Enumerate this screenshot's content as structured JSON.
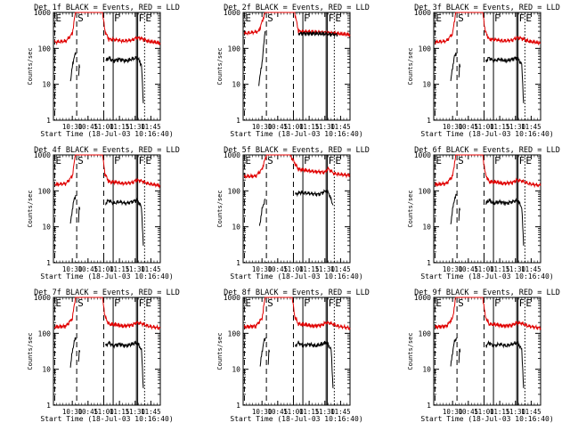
{
  "chart_data": {
    "type": "line",
    "panels": [
      {
        "title": "Det 1f BLACK = Events, RED = LLD",
        "variant": "a"
      },
      {
        "title": "Det 2f BLACK = Events, RED = LLD",
        "variant": "b"
      },
      {
        "title": "Det 3f BLACK = Events, RED = LLD",
        "variant": "a"
      },
      {
        "title": "Det 4f BLACK = Events, RED = LLD",
        "variant": "a"
      },
      {
        "title": "Det 5f BLACK = Events, RED = LLD",
        "variant": "c"
      },
      {
        "title": "Det 6f BLACK = Events, RED = LLD",
        "variant": "a"
      },
      {
        "title": "Det 7f BLACK = Events, RED = LLD",
        "variant": "a"
      },
      {
        "title": "Det 8f BLACK = Events, RED = LLD",
        "variant": "a"
      },
      {
        "title": "Det 9f BLACK = Events, RED = LLD",
        "variant": "a"
      }
    ],
    "xlabel": "Start Time (18-Jul-03 10:16:40)",
    "ylabel": "Counts/sec",
    "xlim": [
      10.2,
      11.9
    ],
    "x_ticks": [
      10.5,
      10.75,
      11.0,
      11.25,
      11.5,
      11.75
    ],
    "x_tick_labels": [
      "10:30",
      "10:45",
      "11:00",
      "11:15",
      "11:30",
      "11:45"
    ],
    "yscale": "log",
    "ylim": [
      1,
      1000
    ],
    "y_ticks": [
      1,
      10,
      100,
      1000
    ],
    "y_tick_labels": [
      "1",
      "10",
      "100",
      "1000"
    ],
    "markers": [
      {
        "label": "E",
        "x": 10.22,
        "style": "dashed"
      },
      {
        "label": "S",
        "x": 10.57,
        "style": "dashed"
      },
      {
        "label": "",
        "x": 11.0,
        "style": "dashed"
      },
      {
        "label": "F",
        "x": 11.15,
        "style": "solid"
      },
      {
        "label": "",
        "x": 11.52,
        "style": "solid"
      },
      {
        "label": "F",
        "x": 11.54,
        "style": "solid"
      },
      {
        "label": "E",
        "x": 11.65,
        "style": "dotted"
      }
    ],
    "series_styles": [
      {
        "name": "Events",
        "color": "#000000"
      },
      {
        "name": "LLD",
        "color": "#e00000"
      }
    ],
    "profiles": {
      "a": {
        "lld": [
          [
            10.22,
            150
          ],
          [
            10.4,
            160
          ],
          [
            10.5,
            260
          ],
          [
            10.55,
            1000
          ],
          [
            10.57,
            1000
          ],
          [
            10.9,
            1000
          ],
          [
            10.98,
            1000
          ],
          [
            11.02,
            300
          ],
          [
            11.08,
            180
          ],
          [
            11.2,
            175
          ],
          [
            11.3,
            160
          ],
          [
            11.45,
            170
          ],
          [
            11.52,
            200
          ],
          [
            11.6,
            190
          ],
          [
            11.7,
            160
          ],
          [
            11.9,
            140
          ]
        ],
        "events_segments": [
          [
            [
              10.47,
              12
            ],
            [
              10.5,
              30
            ],
            [
              10.53,
              60
            ],
            [
              10.56,
              75
            ]
          ],
          [
            [
              10.6,
              15
            ],
            [
              10.61,
              35
            ],
            [
              10.62,
              30
            ]
          ],
          [
            [
              11.03,
              45
            ],
            [
              11.08,
              55
            ],
            [
              11.15,
              45
            ],
            [
              11.25,
              50
            ],
            [
              11.35,
              45
            ],
            [
              11.45,
              50
            ],
            [
              11.52,
              55
            ],
            [
              11.55,
              50
            ],
            [
              11.6,
              35
            ],
            [
              11.63,
              3
            ]
          ]
        ]
      },
      "b": {
        "lld": [
          [
            10.22,
            260
          ],
          [
            10.35,
            280
          ],
          [
            10.45,
            300
          ],
          [
            10.55,
            1000
          ],
          [
            10.6,
            1000
          ],
          [
            10.9,
            1000
          ],
          [
            11.02,
            1000
          ],
          [
            11.08,
            300
          ],
          [
            11.3,
            290
          ],
          [
            11.5,
            280
          ],
          [
            11.7,
            260
          ],
          [
            11.9,
            240
          ]
        ],
        "events_segments": [
          [
            [
              10.45,
              10
            ],
            [
              10.5,
              40
            ],
            [
              10.55,
              300
            ]
          ],
          [
            [
              11.08,
              260
            ],
            [
              11.3,
              260
            ],
            [
              11.5,
              255
            ],
            [
              11.7,
              240
            ]
          ]
        ]
      },
      "c": {
        "lld": [
          [
            10.22,
            250
          ],
          [
            10.4,
            260
          ],
          [
            10.5,
            400
          ],
          [
            10.57,
            1000
          ],
          [
            10.62,
            1000
          ],
          [
            10.95,
            1000
          ],
          [
            11.02,
            600
          ],
          [
            11.08,
            400
          ],
          [
            11.3,
            350
          ],
          [
            11.5,
            330
          ],
          [
            11.55,
            420
          ],
          [
            11.65,
            300
          ],
          [
            11.9,
            270
          ]
        ],
        "events_segments": [
          [
            [
              10.46,
              10
            ],
            [
              10.5,
              30
            ],
            [
              10.55,
              60
            ]
          ],
          [
            [
              11.03,
              80
            ],
            [
              11.1,
              90
            ],
            [
              11.25,
              85
            ],
            [
              11.4,
              80
            ],
            [
              11.52,
              100
            ],
            [
              11.56,
              90
            ],
            [
              11.63,
              40
            ]
          ]
        ]
      }
    }
  }
}
